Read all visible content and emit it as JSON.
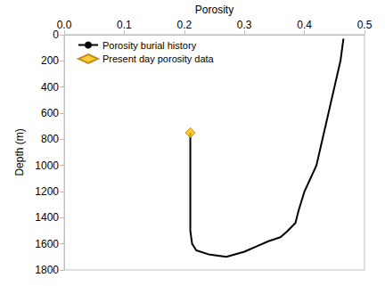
{
  "chart_data": {
    "type": "line",
    "x_label": "Porosity",
    "y_label": "Depth (m)",
    "xlim": [
      0,
      0.5
    ],
    "xticks": [
      {
        "value": 0,
        "label": "0.0"
      },
      0.1,
      0.2,
      0.3,
      0.4,
      0.5
    ],
    "ylim": [
      1800,
      0
    ],
    "yticks": [
      0,
      200,
      400,
      600,
      800,
      1000,
      1200,
      1400,
      1600,
      1800
    ],
    "grid": false,
    "legend": "upper left",
    "series": [
      {
        "name": "Porosity burial history",
        "type": "line",
        "color": "#000000",
        "line_style": "solid",
        "x": [
          0.465,
          0.46,
          0.45,
          0.44,
          0.43,
          0.42,
          0.4,
          0.39,
          0.385,
          0.37,
          0.36,
          0.34,
          0.32,
          0.3,
          0.27,
          0.24,
          0.22,
          0.213,
          0.21,
          0.21,
          0.21
        ],
        "values": [
          30,
          200,
          400,
          600,
          800,
          1000,
          1200,
          1350,
          1440,
          1510,
          1550,
          1580,
          1620,
          1660,
          1700,
          1680,
          1650,
          1600,
          1500,
          1350,
          750
        ]
      },
      {
        "name": "Present day porosity data",
        "type": "scatter",
        "color": "#ffc000",
        "marker": "diamond",
        "x": [
          0.21
        ],
        "values": [
          750
        ]
      }
    ]
  }
}
